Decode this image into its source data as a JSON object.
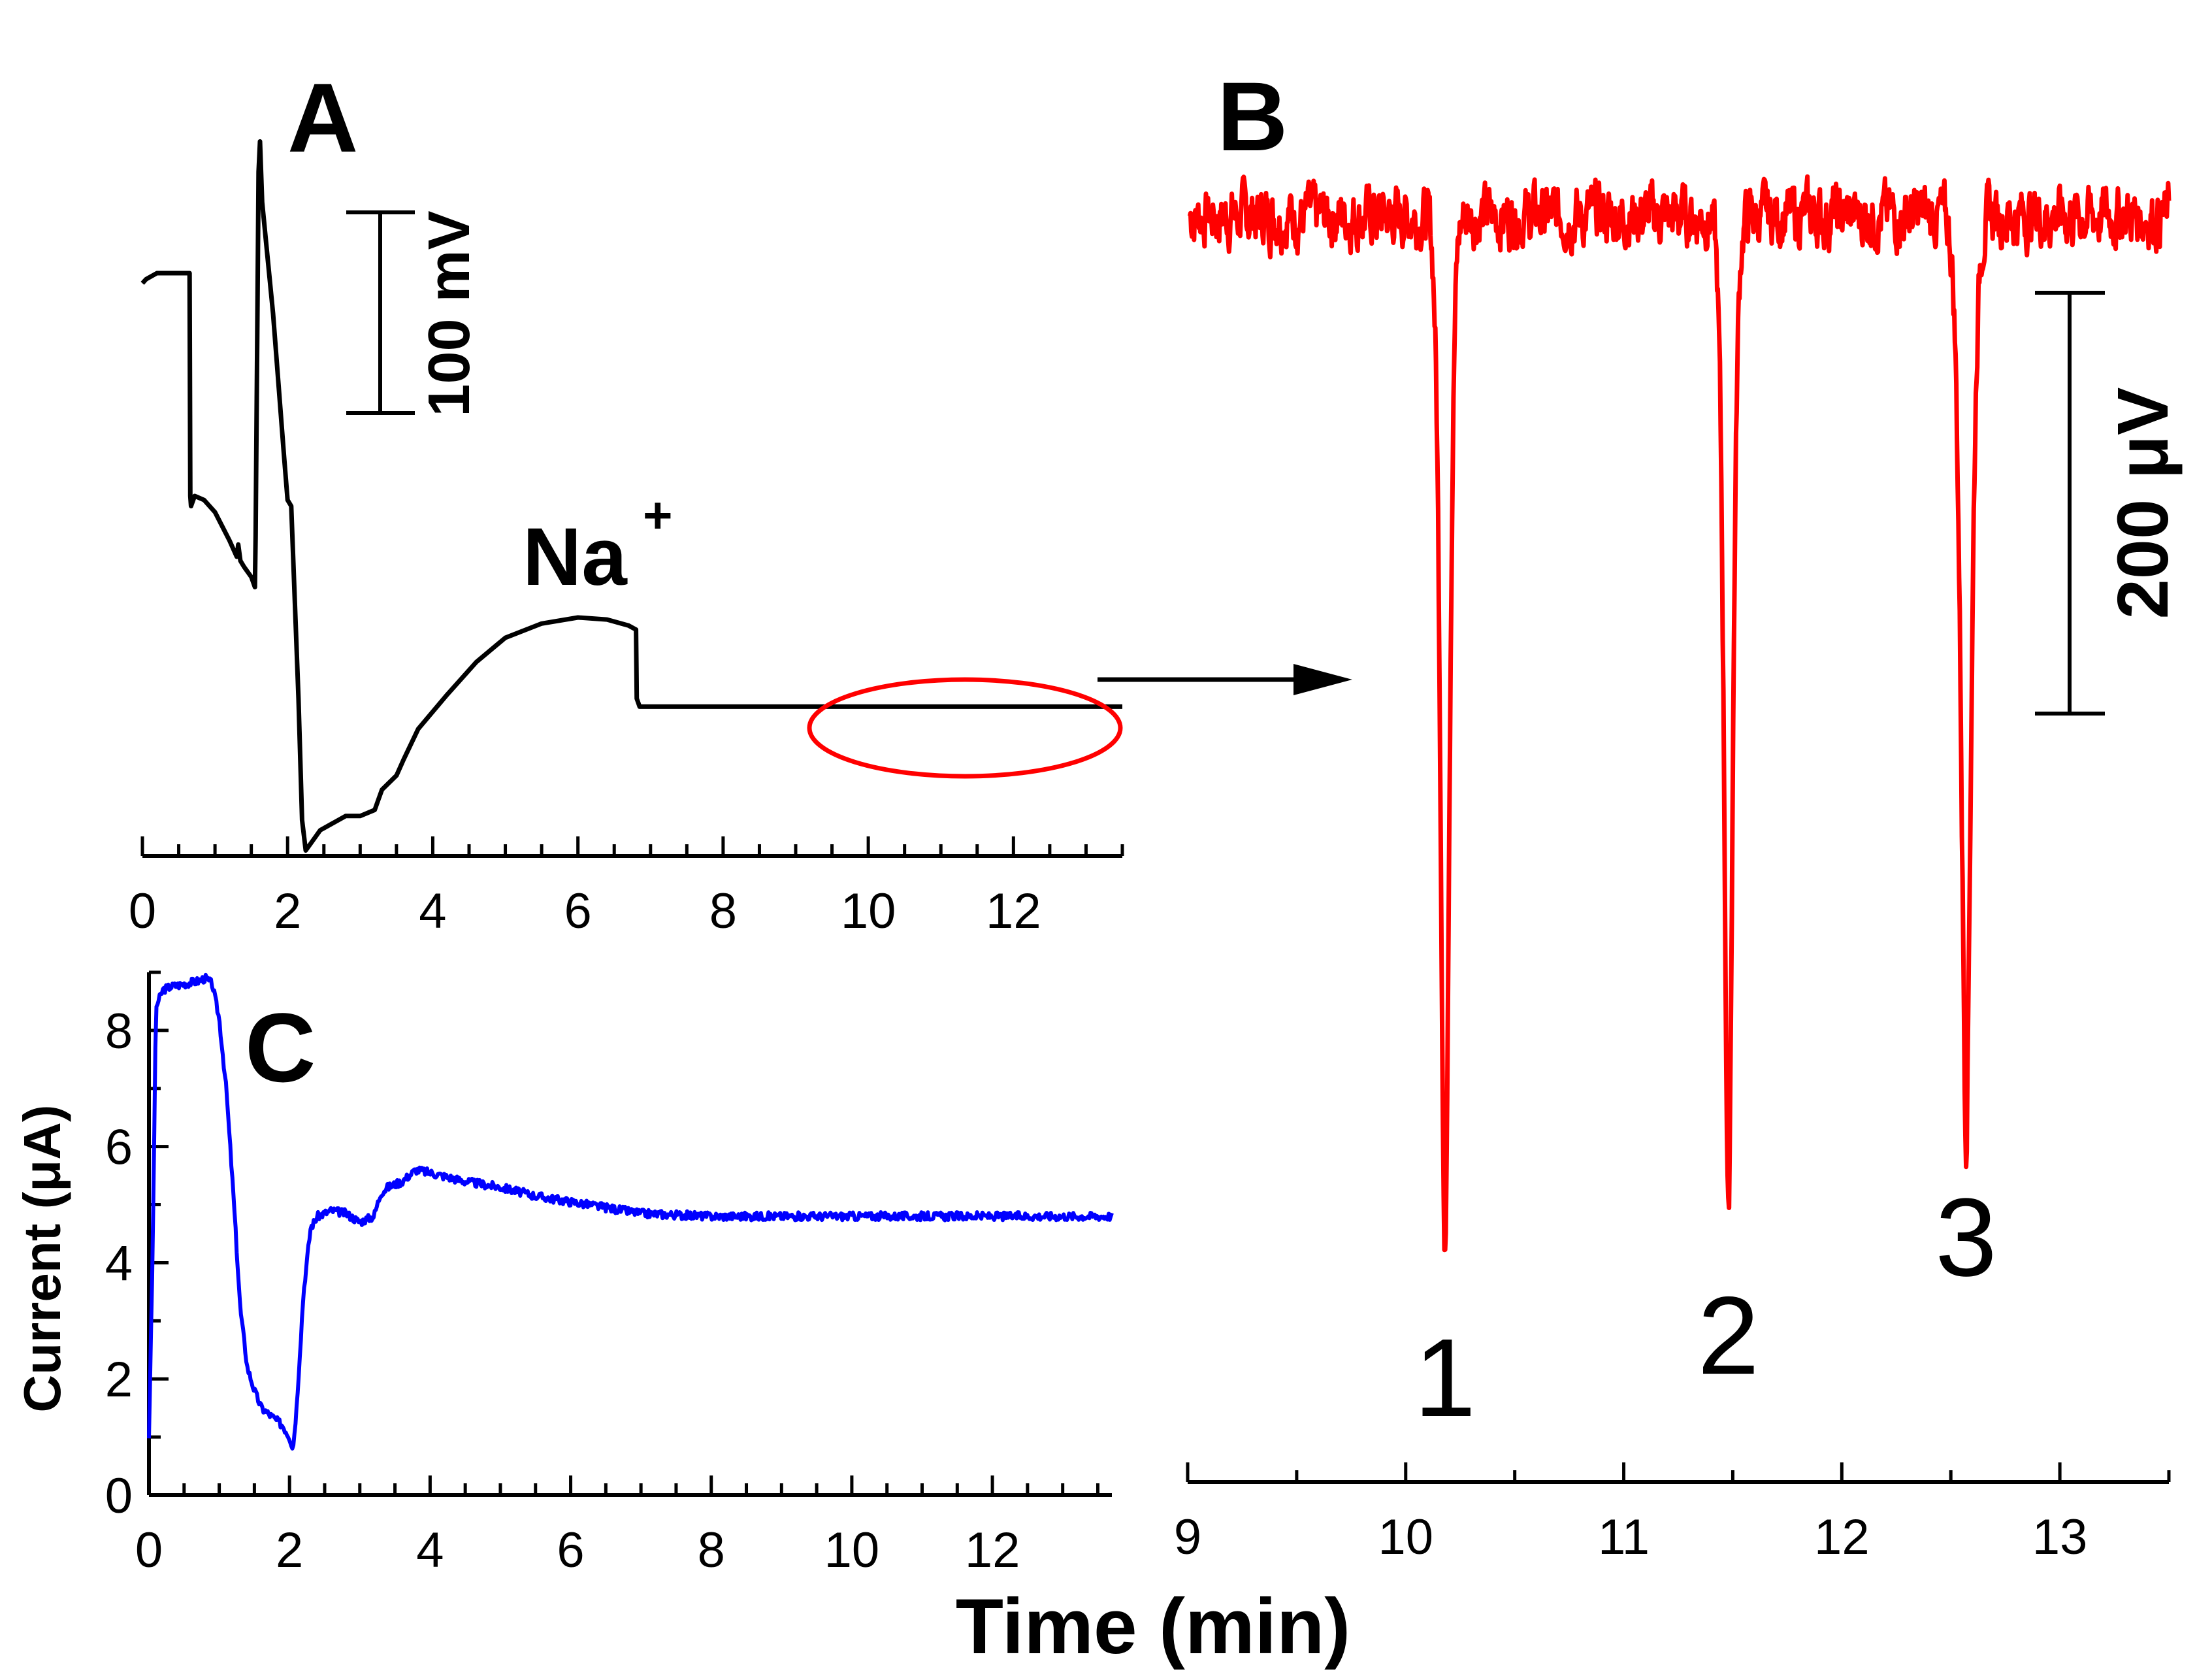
{
  "chart_data": [
    {
      "panel": "A",
      "type": "line",
      "title": "",
      "xlabel": "",
      "ylabel": "",
      "xlim": [
        0,
        13.5
      ],
      "xticks": [
        0,
        2,
        4,
        6,
        8,
        10,
        12
      ],
      "color": "#000000",
      "annotations": {
        "ion_label": "Na",
        "ion_charge": "+",
        "scale_bar": "100 mV"
      },
      "series": [
        {
          "name": "potential (mV, relative)",
          "x": [
            0.0,
            0.05,
            0.2,
            0.3,
            0.5,
            0.6,
            0.65,
            0.66,
            0.67,
            0.72,
            0.85,
            1.0,
            1.1,
            1.2,
            1.3,
            1.32,
            1.35,
            1.4,
            1.5,
            1.55,
            1.56,
            1.6,
            1.62,
            1.65,
            1.8,
            1.95,
            2.0,
            2.05,
            2.15,
            2.2,
            2.25,
            2.35,
            2.45,
            2.6,
            2.8,
            3.0,
            3.2,
            3.25,
            3.3,
            3.5,
            3.6,
            3.8,
            4.2,
            4.6,
            5.0,
            5.5,
            6.0,
            6.4,
            6.7,
            6.8,
            6.81,
            6.85,
            7.2,
            8.0,
            9.0,
            10.0,
            11.0,
            12.0,
            13.0,
            13.5
          ],
          "y": [
            165,
            167,
            170,
            170,
            170,
            170,
            170,
            60,
            55,
            60,
            58,
            52,
            45,
            38,
            30,
            36,
            28,
            25,
            20,
            15,
            40,
            220,
            235,
            205,
            150,
            80,
            58,
            55,
            -40,
            -100,
            -115,
            -110,
            -105,
            -102,
            -98,
            -98,
            -95,
            -90,
            -85,
            -78,
            -70,
            -55,
            -38,
            -22,
            -10,
            -3,
            0,
            -1,
            -4,
            -6,
            -40,
            -44,
            -44,
            -44,
            -44,
            -44,
            -44,
            -44,
            -44,
            -44
          ]
        }
      ]
    },
    {
      "panel": "B",
      "type": "line",
      "title": "",
      "xlabel": "",
      "ylabel": "",
      "xlim": [
        9,
        13.5
      ],
      "ylim": [
        -415,
        55
      ],
      "xticks": [
        9,
        10,
        11,
        12,
        13
      ],
      "color": "#ff0000",
      "annotations": {
        "scale_bar": "200 μV",
        "peak_labels": [
          "1",
          "2",
          "3"
        ]
      },
      "baseline_uV": 0,
      "peaks": [
        {
          "label": "1",
          "time": 10.18,
          "depth_uV": -375,
          "width_min": 0.05
        },
        {
          "label": "2",
          "time": 11.48,
          "depth_uV": -360,
          "width_min": 0.05
        },
        {
          "label": "3",
          "time": 12.57,
          "depth_uV": -325,
          "width_min": 0.06
        }
      ]
    },
    {
      "panel": "C",
      "type": "line",
      "title": "",
      "xlabel": "Time (min)",
      "ylabel": "Current (μA)",
      "xlim": [
        0,
        13.7
      ],
      "ylim": [
        0,
        9
      ],
      "xticks": [
        0,
        2,
        4,
        6,
        8,
        10,
        12
      ],
      "yticks": [
        0,
        2,
        4,
        6,
        8
      ],
      "color": "#0000ff",
      "series": [
        {
          "name": "current",
          "x": [
            0.0,
            0.05,
            0.1,
            0.2,
            0.3,
            0.5,
            0.7,
            0.8,
            0.9,
            1.0,
            1.1,
            1.2,
            1.3,
            1.4,
            1.5,
            1.6,
            1.7,
            1.8,
            1.9,
            2.0,
            2.05,
            2.1,
            2.2,
            2.3,
            2.4,
            2.6,
            2.8,
            3.0,
            3.2,
            3.3,
            3.4,
            3.6,
            3.8,
            4.0,
            4.5,
            5.0,
            5.5,
            6.0,
            6.5,
            7.0,
            8.0,
            9.0,
            10.0,
            11.0,
            12.0,
            13.0,
            13.7
          ],
          "y": [
            1.0,
            4.0,
            8.4,
            8.7,
            8.75,
            8.8,
            8.85,
            8.9,
            8.8,
            8.2,
            7.0,
            5.2,
            3.2,
            2.2,
            1.8,
            1.5,
            1.4,
            1.3,
            1.2,
            1.0,
            0.8,
            1.5,
            3.5,
            4.6,
            4.8,
            4.9,
            4.85,
            4.7,
            4.8,
            5.2,
            5.3,
            5.4,
            5.6,
            5.55,
            5.4,
            5.3,
            5.15,
            5.05,
            4.95,
            4.85,
            4.8,
            4.8,
            4.8,
            4.8,
            4.8,
            4.8,
            4.8
          ]
        }
      ]
    }
  ],
  "arrow": {
    "color": "#000000"
  },
  "highlight": {
    "color": "#ff0000"
  }
}
